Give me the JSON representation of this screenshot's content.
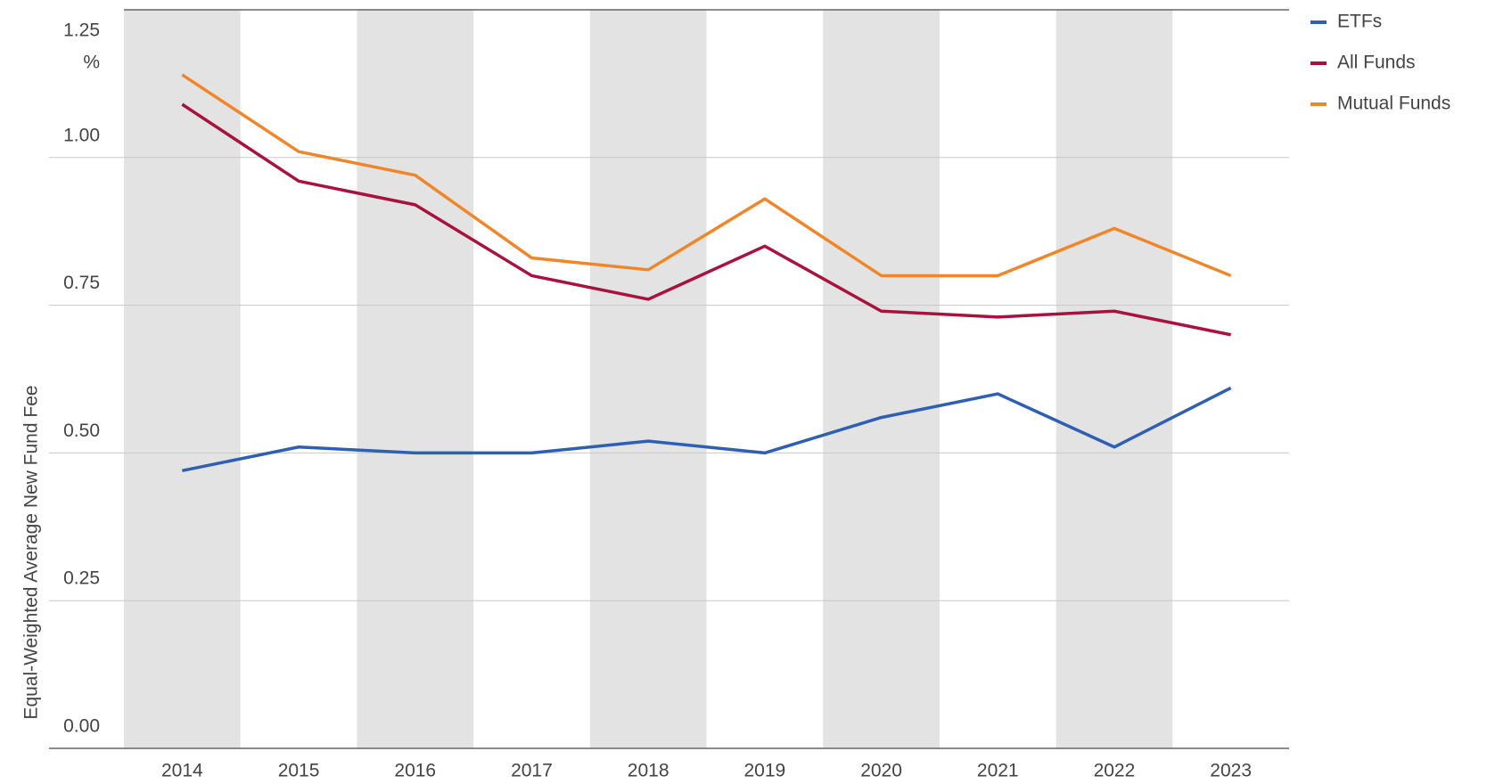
{
  "chart_data": {
    "type": "line",
    "y_label": "Equal-Weighted Average New Fund Fee",
    "y_unit": "%",
    "categories": [
      "2014",
      "2015",
      "2016",
      "2017",
      "2018",
      "2019",
      "2020",
      "2021",
      "2022",
      "2023"
    ],
    "series": [
      {
        "name": "ETFs",
        "color": "#2f5fb3",
        "values": [
          0.47,
          0.51,
          0.5,
          0.5,
          0.52,
          0.5,
          0.56,
          0.6,
          0.51,
          0.61
        ]
      },
      {
        "name": "All Funds",
        "color": "#a8123e",
        "values": [
          1.09,
          0.96,
          0.92,
          0.8,
          0.76,
          0.85,
          0.74,
          0.73,
          0.74,
          0.7
        ]
      },
      {
        "name": "Mutual Funds",
        "color": "#f0862a",
        "values": [
          1.14,
          1.01,
          0.97,
          0.83,
          0.81,
          0.93,
          0.8,
          0.8,
          0.88,
          0.8
        ]
      }
    ],
    "ylim": [
      0,
      1.25
    ],
    "yticks": [
      {
        "value": 0,
        "label": "0.00"
      },
      0.25,
      {
        "value": 0.5,
        "label": "0.50"
      },
      0.75,
      {
        "value": 1,
        "label": "1.00"
      },
      1.25
    ],
    "grid": true,
    "band_shading": true,
    "legend": "top-right"
  }
}
